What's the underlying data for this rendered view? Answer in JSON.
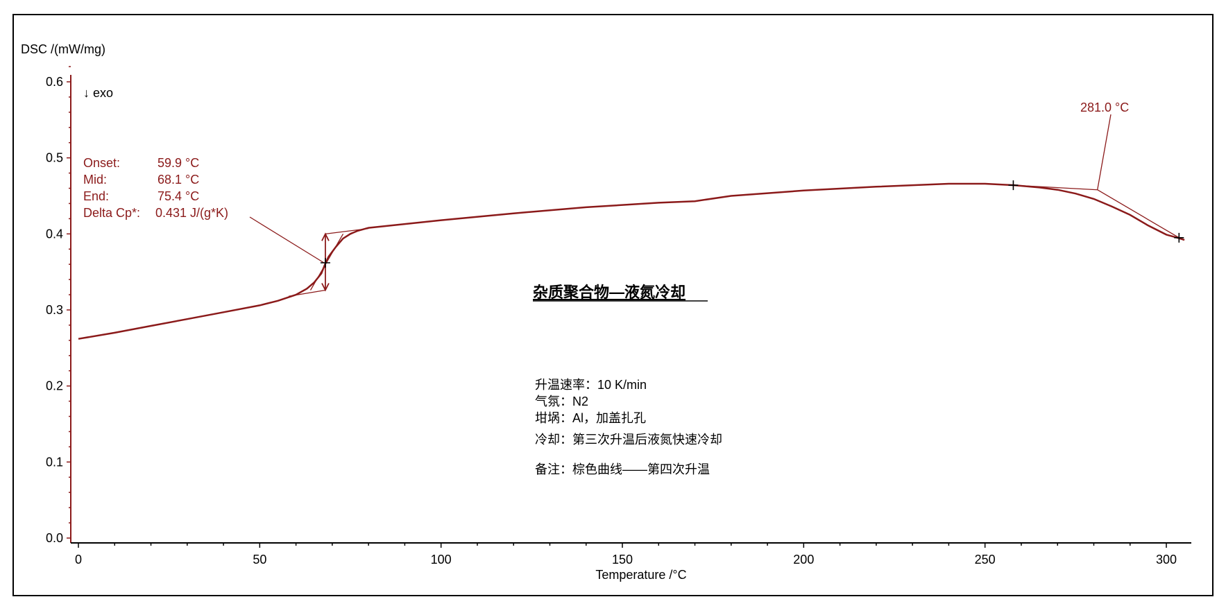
{
  "chart_data": {
    "type": "line",
    "ylabel": "DSC /(mW/mg)",
    "xlabel": "Temperature /°C",
    "xlim": [
      0,
      305
    ],
    "ylim": [
      0.0,
      0.62
    ],
    "x_ticks": [
      0,
      50,
      100,
      150,
      200,
      250,
      300
    ],
    "y_ticks": [
      0.0,
      0.1,
      0.2,
      0.3,
      0.4,
      0.5,
      0.6
    ],
    "x_tick_labels": [
      "0",
      "50",
      "100",
      "150",
      "200",
      "250",
      "300"
    ],
    "y_tick_labels": [
      "0.0",
      "0.1",
      "0.2",
      "0.3",
      "0.4",
      "0.5",
      "0.6"
    ],
    "exo_label": "↓ exo",
    "series": [
      {
        "color": "#8b1a1a",
        "x": [
          0,
          10,
          20,
          30,
          40,
          50,
          55,
          60,
          63,
          65,
          67,
          68,
          69,
          71,
          73,
          75,
          77,
          80,
          90,
          100,
          120,
          140,
          160,
          170,
          180,
          200,
          220,
          240,
          250,
          258,
          265,
          270,
          275,
          280,
          285,
          290,
          295,
          300,
          303,
          305
        ],
        "y": [
          0.262,
          0.27,
          0.279,
          0.288,
          0.297,
          0.306,
          0.312,
          0.32,
          0.328,
          0.336,
          0.348,
          0.36,
          0.37,
          0.383,
          0.394,
          0.4,
          0.404,
          0.408,
          0.413,
          0.418,
          0.427,
          0.435,
          0.441,
          0.443,
          0.45,
          0.457,
          0.462,
          0.466,
          0.466,
          0.464,
          0.461,
          0.458,
          0.453,
          0.446,
          0.436,
          0.425,
          0.411,
          0.399,
          0.395,
          0.392
        ]
      }
    ],
    "glass_transition": {
      "onset_label": "Onset:",
      "onset_value": "59.9 °C",
      "mid_label": "Mid:",
      "mid_value": "68.1 °C",
      "end_label": "End:",
      "end_value": "75.4 °C",
      "deltacp_label": "Delta Cp*:",
      "deltacp_value": "0.431 J/(g*K)",
      "mid_x": 68.1,
      "mid_y": 0.362,
      "lower_y": 0.326,
      "upper_y": 0.4
    },
    "peak_annotation": {
      "text": "281.0 °C",
      "x": 281.0,
      "y": 0.458
    },
    "markers": [
      {
        "x": 68.1,
        "y": 0.362
      },
      {
        "x": 257.8,
        "y": 0.464
      },
      {
        "x": 303.5,
        "y": 0.395
      }
    ]
  },
  "title": "杂质聚合物—液氮冷却",
  "notes": [
    "升温速率：10 K/min",
    "气氛：N2",
    "坩埚：Al，加盖扎孔",
    "冷却：第三次升温后液氮快速冷却",
    "备注：棕色曲线——第四次升温"
  ]
}
